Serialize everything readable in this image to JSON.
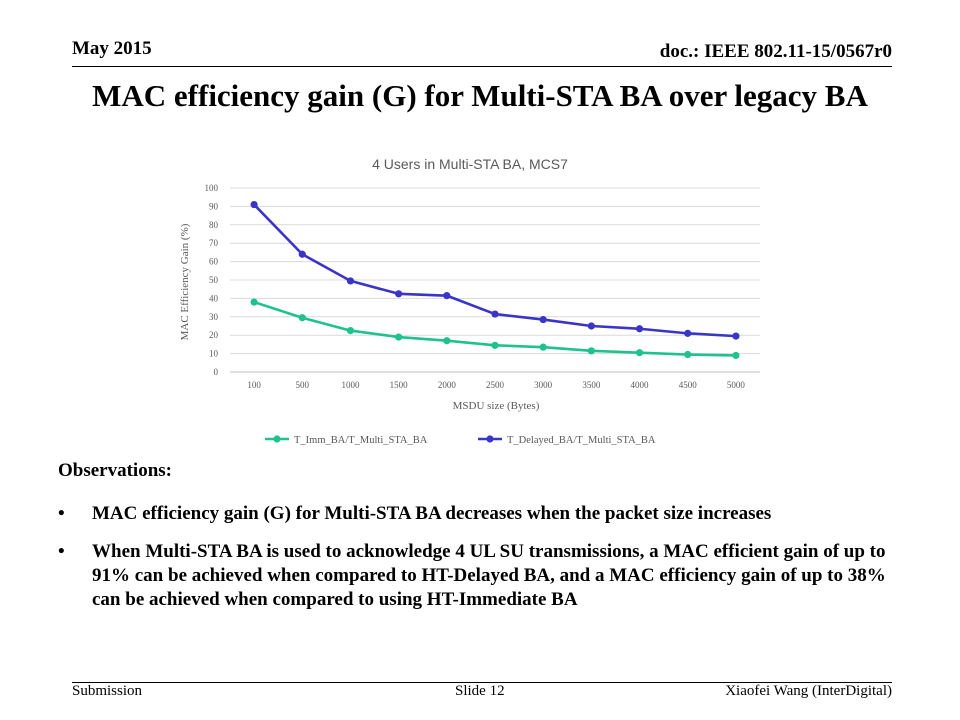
{
  "header": {
    "date": "May 2015",
    "doc": "doc.: IEEE 802.11-15/0567r0"
  },
  "slide_title": "MAC efficiency gain (G) for Multi-STA BA over legacy BA",
  "chart_data": {
    "type": "line",
    "title": "4 Users in Multi-STA BA, MCS7",
    "xlabel": "MSDU size (Bytes)",
    "ylabel": "MAC Efficiency Gain (%)",
    "categories": [
      "100",
      "500",
      "1000",
      "1500",
      "2000",
      "2500",
      "3000",
      "3500",
      "4000",
      "4500",
      "5000"
    ],
    "ylim": [
      0,
      100
    ],
    "yticks": [
      0,
      10,
      20,
      30,
      40,
      50,
      60,
      70,
      80,
      90,
      100
    ],
    "grid": true,
    "legend_position": "bottom",
    "series": [
      {
        "name": "T_Imm_BA/T_Multi_STA_BA",
        "color": "#1fc28f",
        "values": [
          38,
          29.5,
          22.5,
          19,
          17,
          14.5,
          13.5,
          11.5,
          10.5,
          9.5,
          9
        ]
      },
      {
        "name": "T_Delayed_BA/T_Multi_STA_BA",
        "color": "#3a34c7",
        "values": [
          91,
          64,
          49.5,
          42.5,
          41.5,
          31.5,
          28.5,
          25,
          23.5,
          21,
          19.5
        ]
      }
    ]
  },
  "observations": {
    "heading": "Observations:",
    "bullet_glyph": "•",
    "items": [
      "MAC efficiency gain (G) for Multi-STA BA decreases when the packet size increases",
      "When Multi-STA BA is used to acknowledge 4 UL SU transmissions, a MAC efficient gain of up to 91% can be achieved when compared to HT-Delayed BA, and a MAC efficiency gain of up to 38% can be achieved when compared to using HT-Immediate BA"
    ]
  },
  "footer": {
    "left": "Submission",
    "center": "Slide 12",
    "right": "Xiaofei Wang (InterDigital)"
  }
}
